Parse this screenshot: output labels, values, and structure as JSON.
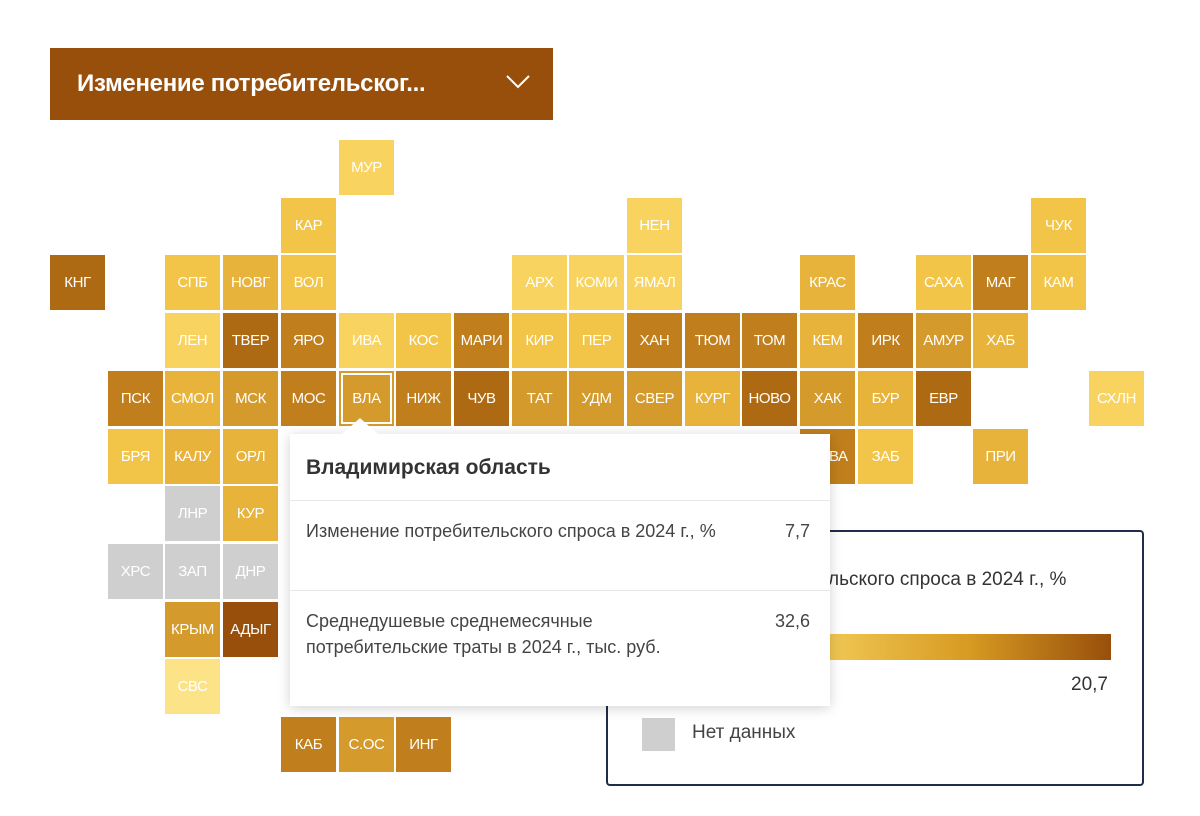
{
  "indicator_select": {
    "label": "Изменение потребительског...",
    "icon": "chevron-down-icon"
  },
  "colors": {
    "c1": "#fde388",
    "c2": "#f9d35f",
    "c3": "#f2c548",
    "c4": "#e8b33b",
    "c5": "#d49a2c",
    "c6": "#c07f1c",
    "c7": "#ae6a12",
    "c8": "#984f0b",
    "nodata": "#cfcfcf"
  },
  "regions": [
    {
      "code": "МУР",
      "col": 5,
      "row": 0,
      "c": "c2"
    },
    {
      "code": "КАР",
      "col": 4,
      "row": 1,
      "c": "c3"
    },
    {
      "code": "НЕН",
      "col": 10,
      "row": 1,
      "c": "c2"
    },
    {
      "code": "ЧУК",
      "col": 17,
      "row": 1,
      "c": "c3"
    },
    {
      "code": "КНГ",
      "col": 0,
      "row": 2,
      "c": "c7"
    },
    {
      "code": "СПБ",
      "col": 2,
      "row": 2,
      "c": "c3"
    },
    {
      "code": "НОВГ",
      "col": 3,
      "row": 2,
      "c": "c4"
    },
    {
      "code": "ВОЛ",
      "col": 4,
      "row": 2,
      "c": "c3"
    },
    {
      "code": "АРХ",
      "col": 8,
      "row": 2,
      "c": "c2"
    },
    {
      "code": "КОМИ",
      "col": 9,
      "row": 2,
      "c": "c2"
    },
    {
      "code": "ЯМАЛ",
      "col": 10,
      "row": 2,
      "c": "c2"
    },
    {
      "code": "КРАС",
      "col": 13,
      "row": 2,
      "c": "c4"
    },
    {
      "code": "САХА",
      "col": 15,
      "row": 2,
      "c": "c3"
    },
    {
      "code": "МАГ",
      "col": 16,
      "row": 2,
      "c": "c6"
    },
    {
      "code": "КАМ",
      "col": 17,
      "row": 2,
      "c": "c3"
    },
    {
      "code": "ЛЕН",
      "col": 2,
      "row": 3,
      "c": "c2"
    },
    {
      "code": "ТВЕР",
      "col": 3,
      "row": 3,
      "c": "c7"
    },
    {
      "code": "ЯРО",
      "col": 4,
      "row": 3,
      "c": "c6"
    },
    {
      "code": "ИВА",
      "col": 5,
      "row": 3,
      "c": "c2"
    },
    {
      "code": "КОС",
      "col": 6,
      "row": 3,
      "c": "c3"
    },
    {
      "code": "МАРИ",
      "col": 7,
      "row": 3,
      "c": "c6"
    },
    {
      "code": "КИР",
      "col": 8,
      "row": 3,
      "c": "c3"
    },
    {
      "code": "ПЕР",
      "col": 9,
      "row": 3,
      "c": "c3"
    },
    {
      "code": "ХАН",
      "col": 10,
      "row": 3,
      "c": "c6"
    },
    {
      "code": "ТЮМ",
      "col": 11,
      "row": 3,
      "c": "c6"
    },
    {
      "code": "ТОМ",
      "col": 12,
      "row": 3,
      "c": "c6"
    },
    {
      "code": "КЕМ",
      "col": 13,
      "row": 3,
      "c": "c4"
    },
    {
      "code": "ИРК",
      "col": 14,
      "row": 3,
      "c": "c6"
    },
    {
      "code": "АМУР",
      "col": 15,
      "row": 3,
      "c": "c5"
    },
    {
      "code": "ХАБ",
      "col": 16,
      "row": 3,
      "c": "c4"
    },
    {
      "code": "ПСК",
      "col": 1,
      "row": 4,
      "c": "c6"
    },
    {
      "code": "СМОЛ",
      "col": 2,
      "row": 4,
      "c": "c4"
    },
    {
      "code": "МСК",
      "col": 3,
      "row": 4,
      "c": "c5"
    },
    {
      "code": "МОС",
      "col": 4,
      "row": 4,
      "c": "c6"
    },
    {
      "code": "ВЛА",
      "col": 5,
      "row": 4,
      "c": "c5",
      "selected": true
    },
    {
      "code": "НИЖ",
      "col": 6,
      "row": 4,
      "c": "c6"
    },
    {
      "code": "ЧУВ",
      "col": 7,
      "row": 4,
      "c": "c7"
    },
    {
      "code": "ТАТ",
      "col": 8,
      "row": 4,
      "c": "c5"
    },
    {
      "code": "УДМ",
      "col": 9,
      "row": 4,
      "c": "c5"
    },
    {
      "code": "СВЕР",
      "col": 10,
      "row": 4,
      "c": "c5"
    },
    {
      "code": "КУРГ",
      "col": 11,
      "row": 4,
      "c": "c4"
    },
    {
      "code": "НОВО",
      "col": 12,
      "row": 4,
      "c": "c7"
    },
    {
      "code": "ХАК",
      "col": 13,
      "row": 4,
      "c": "c5"
    },
    {
      "code": "БУР",
      "col": 14,
      "row": 4,
      "c": "c4"
    },
    {
      "code": "ЕВР",
      "col": 15,
      "row": 4,
      "c": "c7"
    },
    {
      "code": "СХЛН",
      "col": 18,
      "row": 4,
      "c": "c2"
    },
    {
      "code": "БРЯ",
      "col": 1,
      "row": 5,
      "c": "c3"
    },
    {
      "code": "КАЛУ",
      "col": 2,
      "row": 5,
      "c": "c4"
    },
    {
      "code": "ОРЛ",
      "col": 3,
      "row": 5,
      "c": "c4"
    },
    {
      "code": "ТЫВА",
      "col": 13,
      "row": 5,
      "c": "c6"
    },
    {
      "code": "ЗАБ",
      "col": 14,
      "row": 5,
      "c": "c3"
    },
    {
      "code": "ПРИ",
      "col": 16,
      "row": 5,
      "c": "c4"
    },
    {
      "code": "ЛНР",
      "col": 2,
      "row": 6,
      "c": "nodata"
    },
    {
      "code": "КУР",
      "col": 3,
      "row": 6,
      "c": "c4"
    },
    {
      "code": "ХРС",
      "col": 1,
      "row": 7,
      "c": "nodata"
    },
    {
      "code": "ЗАП",
      "col": 2,
      "row": 7,
      "c": "nodata"
    },
    {
      "code": "ДНР",
      "col": 3,
      "row": 7,
      "c": "nodata"
    },
    {
      "code": "КРЫМ",
      "col": 2,
      "row": 8,
      "c": "c5"
    },
    {
      "code": "АДЫГ",
      "col": 3,
      "row": 8,
      "c": "c8"
    },
    {
      "code": "СВС",
      "col": 2,
      "row": 9,
      "c": "c1"
    },
    {
      "code": "КАБ",
      "col": 4,
      "row": 10,
      "c": "c6"
    },
    {
      "code": "С.ОС",
      "col": 5,
      "row": 10,
      "c": "c5"
    },
    {
      "code": "ИНГ",
      "col": 6,
      "row": 10,
      "c": "c6"
    }
  ],
  "legend": {
    "title": "Изменение потребительского спроса в 2024 г., %",
    "min": "",
    "max": "20,7",
    "nodata_label": "Нет данных"
  },
  "tooltip": {
    "region": "Владимирская область",
    "rows": [
      {
        "label": "Изменение потребительского спроса в 2024 г., %",
        "value": "7,7"
      },
      {
        "label": "Среднедушевые среднемесячные потребительские траты в 2024 г., тыс. руб.",
        "value": "32,6"
      }
    ]
  }
}
